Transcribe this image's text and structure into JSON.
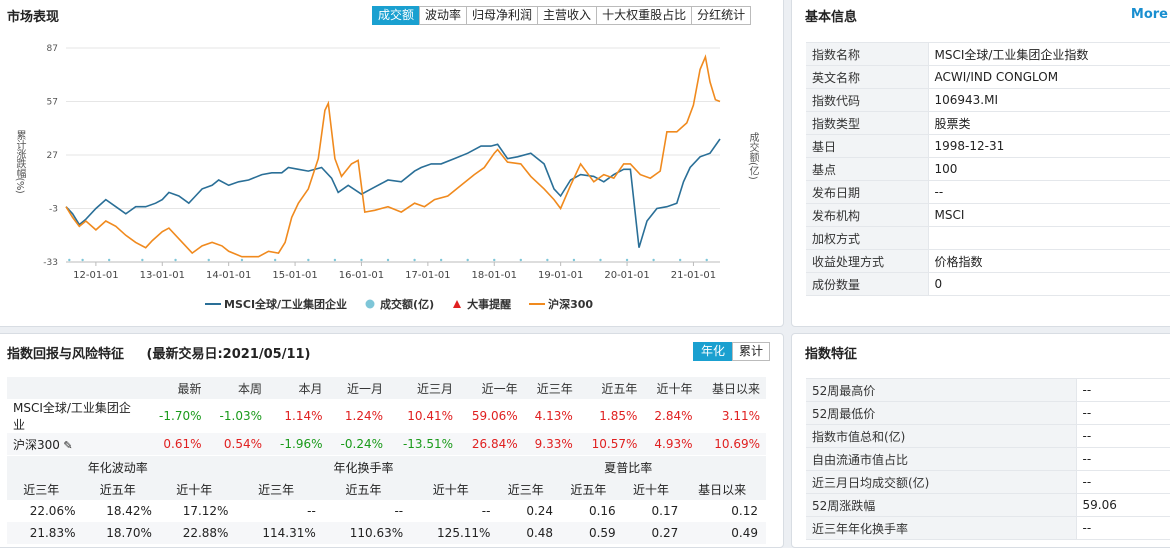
{
  "market": {
    "title": "市场表现",
    "tabs": [
      "成交额",
      "波动率",
      "归母净利润",
      "主营收入",
      "十大权重股占比",
      "分红统计"
    ],
    "active_tab": 0,
    "y_left_label": "累计涨跌幅(%)",
    "y_right_label": "成交额(亿)",
    "legend": {
      "msci": "MSCI全球/工业集团企业",
      "volume": "成交额(亿)",
      "events": "大事提醒",
      "hs300": "沪深300"
    },
    "colors": {
      "msci": "#2a6f97",
      "hs300": "#f08a1e",
      "volume": "#7ec6d8",
      "events": "#e02020"
    }
  },
  "chart_data": {
    "type": "line",
    "y_ticks": [
      87,
      57,
      27,
      -3,
      -33
    ],
    "ylim": [
      -33,
      87
    ],
    "x_ticks": [
      "12-01-01",
      "13-01-01",
      "14-01-01",
      "15-01-01",
      "16-01-01",
      "17-01-01",
      "18-01-01",
      "19-01-01",
      "20-01-01",
      "21-01-01"
    ],
    "x_range": [
      2011.55,
      2021.4
    ],
    "series": [
      {
        "name": "MSCI全球/工业集团企业",
        "points": [
          [
            2011.55,
            -2
          ],
          [
            2011.65,
            -6
          ],
          [
            2011.75,
            -12
          ],
          [
            2011.85,
            -9
          ],
          [
            2012.0,
            -3
          ],
          [
            2012.15,
            2
          ],
          [
            2012.3,
            -2
          ],
          [
            2012.45,
            -6
          ],
          [
            2012.6,
            -2
          ],
          [
            2012.75,
            -2
          ],
          [
            2012.9,
            0
          ],
          [
            2013.0,
            2
          ],
          [
            2013.1,
            6
          ],
          [
            2013.25,
            4
          ],
          [
            2013.4,
            0
          ],
          [
            2013.5,
            4
          ],
          [
            2013.6,
            8
          ],
          [
            2013.75,
            10
          ],
          [
            2013.85,
            13
          ],
          [
            2014.0,
            10
          ],
          [
            2014.15,
            12
          ],
          [
            2014.3,
            13
          ],
          [
            2014.5,
            16
          ],
          [
            2014.65,
            17
          ],
          [
            2014.8,
            17
          ],
          [
            2014.9,
            20
          ],
          [
            2015.05,
            19
          ],
          [
            2015.2,
            18
          ],
          [
            2015.4,
            20
          ],
          [
            2015.55,
            14
          ],
          [
            2015.65,
            6
          ],
          [
            2015.8,
            10
          ],
          [
            2016.0,
            5
          ],
          [
            2016.2,
            9
          ],
          [
            2016.4,
            13
          ],
          [
            2016.6,
            12
          ],
          [
            2016.8,
            18
          ],
          [
            2016.9,
            20
          ],
          [
            2017.05,
            22
          ],
          [
            2017.2,
            22
          ],
          [
            2017.4,
            25
          ],
          [
            2017.6,
            28
          ],
          [
            2017.8,
            32
          ],
          [
            2017.95,
            32
          ],
          [
            2018.05,
            33
          ],
          [
            2018.2,
            25
          ],
          [
            2018.35,
            26
          ],
          [
            2018.55,
            28
          ],
          [
            2018.75,
            22
          ],
          [
            2018.9,
            8
          ],
          [
            2019.0,
            4
          ],
          [
            2019.15,
            13
          ],
          [
            2019.3,
            16
          ],
          [
            2019.5,
            15
          ],
          [
            2019.65,
            12
          ],
          [
            2019.8,
            16
          ],
          [
            2019.95,
            19
          ],
          [
            2020.05,
            19
          ],
          [
            2020.18,
            -25
          ],
          [
            2020.3,
            -10
          ],
          [
            2020.45,
            -3
          ],
          [
            2020.6,
            -2
          ],
          [
            2020.75,
            0
          ],
          [
            2020.85,
            12
          ],
          [
            2020.95,
            20
          ],
          [
            2021.1,
            26
          ],
          [
            2021.25,
            28
          ],
          [
            2021.4,
            36
          ]
        ]
      },
      {
        "name": "沪深300",
        "points": [
          [
            2011.55,
            -2
          ],
          [
            2011.65,
            -8
          ],
          [
            2011.75,
            -13
          ],
          [
            2011.85,
            -10
          ],
          [
            2012.0,
            -15
          ],
          [
            2012.15,
            -10
          ],
          [
            2012.3,
            -13
          ],
          [
            2012.45,
            -18
          ],
          [
            2012.6,
            -22
          ],
          [
            2012.75,
            -25
          ],
          [
            2012.85,
            -21
          ],
          [
            2013.0,
            -16
          ],
          [
            2013.1,
            -14
          ],
          [
            2013.25,
            -20
          ],
          [
            2013.45,
            -28
          ],
          [
            2013.6,
            -24
          ],
          [
            2013.75,
            -22
          ],
          [
            2013.9,
            -24
          ],
          [
            2014.0,
            -27
          ],
          [
            2014.2,
            -30
          ],
          [
            2014.45,
            -30
          ],
          [
            2014.6,
            -27
          ],
          [
            2014.75,
            -28
          ],
          [
            2014.85,
            -22
          ],
          [
            2014.95,
            -8
          ],
          [
            2015.05,
            0
          ],
          [
            2015.2,
            8
          ],
          [
            2015.35,
            25
          ],
          [
            2015.45,
            52
          ],
          [
            2015.5,
            56
          ],
          [
            2015.6,
            25
          ],
          [
            2015.7,
            15
          ],
          [
            2015.85,
            22
          ],
          [
            2015.95,
            24
          ],
          [
            2016.05,
            -5
          ],
          [
            2016.2,
            -4
          ],
          [
            2016.4,
            -2
          ],
          [
            2016.6,
            -5
          ],
          [
            2016.8,
            0
          ],
          [
            2016.95,
            -2
          ],
          [
            2017.1,
            2
          ],
          [
            2017.3,
            4
          ],
          [
            2017.5,
            10
          ],
          [
            2017.7,
            16
          ],
          [
            2017.85,
            20
          ],
          [
            2018.0,
            28
          ],
          [
            2018.05,
            30
          ],
          [
            2018.2,
            23
          ],
          [
            2018.4,
            22
          ],
          [
            2018.55,
            15
          ],
          [
            2018.75,
            8
          ],
          [
            2018.9,
            2
          ],
          [
            2019.0,
            -3
          ],
          [
            2019.15,
            10
          ],
          [
            2019.3,
            22
          ],
          [
            2019.5,
            12
          ],
          [
            2019.65,
            16
          ],
          [
            2019.8,
            14
          ],
          [
            2019.95,
            22
          ],
          [
            2020.05,
            22
          ],
          [
            2020.2,
            16
          ],
          [
            2020.35,
            14
          ],
          [
            2020.5,
            18
          ],
          [
            2020.6,
            40
          ],
          [
            2020.75,
            40
          ],
          [
            2020.9,
            45
          ],
          [
            2021.0,
            55
          ],
          [
            2021.1,
            75
          ],
          [
            2021.18,
            82
          ],
          [
            2021.25,
            68
          ],
          [
            2021.33,
            58
          ],
          [
            2021.4,
            57
          ]
        ]
      }
    ],
    "volume_x": [
      2011.6,
      2011.8,
      2012.2,
      2012.7,
      2013.2,
      2013.7,
      2014.2,
      2014.7,
      2015.2,
      2015.6,
      2016.0,
      2016.4,
      2016.8,
      2017.2,
      2017.6,
      2018.0,
      2018.4,
      2018.8,
      2019.2,
      2019.6,
      2020.0,
      2020.4,
      2020.8,
      2021.2
    ]
  },
  "basic": {
    "title": "基本信息",
    "more": "More",
    "rows": [
      {
        "k": "指数名称",
        "v": "MSCI全球/工业集团企业指数"
      },
      {
        "k": "英文名称",
        "v": "ACWI/IND CONGLOM"
      },
      {
        "k": "指数代码",
        "v": "106943.MI"
      },
      {
        "k": "指数类型",
        "v": "股票类"
      },
      {
        "k": "基日",
        "v": "1998-12-31"
      },
      {
        "k": "基点",
        "v": "100"
      },
      {
        "k": "发布日期",
        "v": "--"
      },
      {
        "k": "发布机构",
        "v": "MSCI"
      },
      {
        "k": "加权方式",
        "v": ""
      },
      {
        "k": "收益处理方式",
        "v": "价格指数"
      },
      {
        "k": "成份数量",
        "v": "0"
      }
    ]
  },
  "returns": {
    "title": "指数回报与风险特征",
    "date": "(最新交易日:2021/05/11)",
    "toggle": [
      "年化",
      "累计"
    ],
    "headers": [
      "",
      "最新",
      "本周",
      "本月",
      "近一月",
      "近三月",
      "近一年",
      "近三年",
      "近五年",
      "近十年",
      "基日以来"
    ],
    "rows": [
      {
        "name": "MSCI全球/工业集团企业",
        "vals": [
          "-1.70%",
          "-1.03%",
          "1.14%",
          "1.24%",
          "10.41%",
          "59.06%",
          "4.13%",
          "1.85%",
          "2.84%",
          "3.11%"
        ],
        "signs": [
          "g",
          "g",
          "r",
          "r",
          "r",
          "r",
          "r",
          "r",
          "r",
          "r"
        ]
      },
      {
        "name": "沪深300",
        "vals": [
          "0.61%",
          "0.54%",
          "-1.96%",
          "-0.24%",
          "-13.51%",
          "26.84%",
          "9.33%",
          "10.57%",
          "4.93%",
          "10.69%"
        ],
        "signs": [
          "r",
          "r",
          "g",
          "g",
          "g",
          "r",
          "r",
          "r",
          "r",
          "r"
        ]
      }
    ]
  },
  "risk": {
    "groups": [
      "年化波动率",
      "年化换手率",
      "夏普比率"
    ],
    "sub": [
      "近三年",
      "近五年",
      "近十年",
      "近三年",
      "近五年",
      "近十年",
      "近三年",
      "近五年",
      "近十年",
      "基日以来"
    ],
    "rows": [
      [
        "22.06%",
        "18.42%",
        "17.12%",
        "--",
        "--",
        "--",
        "0.24",
        "0.16",
        "0.17",
        "0.12"
      ],
      [
        "21.83%",
        "18.70%",
        "22.88%",
        "114.31%",
        "110.63%",
        "125.11%",
        "0.48",
        "0.59",
        "0.27",
        "0.49"
      ]
    ]
  },
  "features": {
    "title": "指数特征",
    "rows": [
      {
        "k": "52周最高价",
        "v": "--"
      },
      {
        "k": "52周最低价",
        "v": "--"
      },
      {
        "k": "指数市值总和(亿)",
        "v": "--"
      },
      {
        "k": "自由流通市值占比",
        "v": "--"
      },
      {
        "k": "近三月日均成交额(亿)",
        "v": "--"
      },
      {
        "k": "52周涨跌幅",
        "v": "59.06"
      },
      {
        "k": "近三年年化换手率",
        "v": "--"
      }
    ]
  }
}
